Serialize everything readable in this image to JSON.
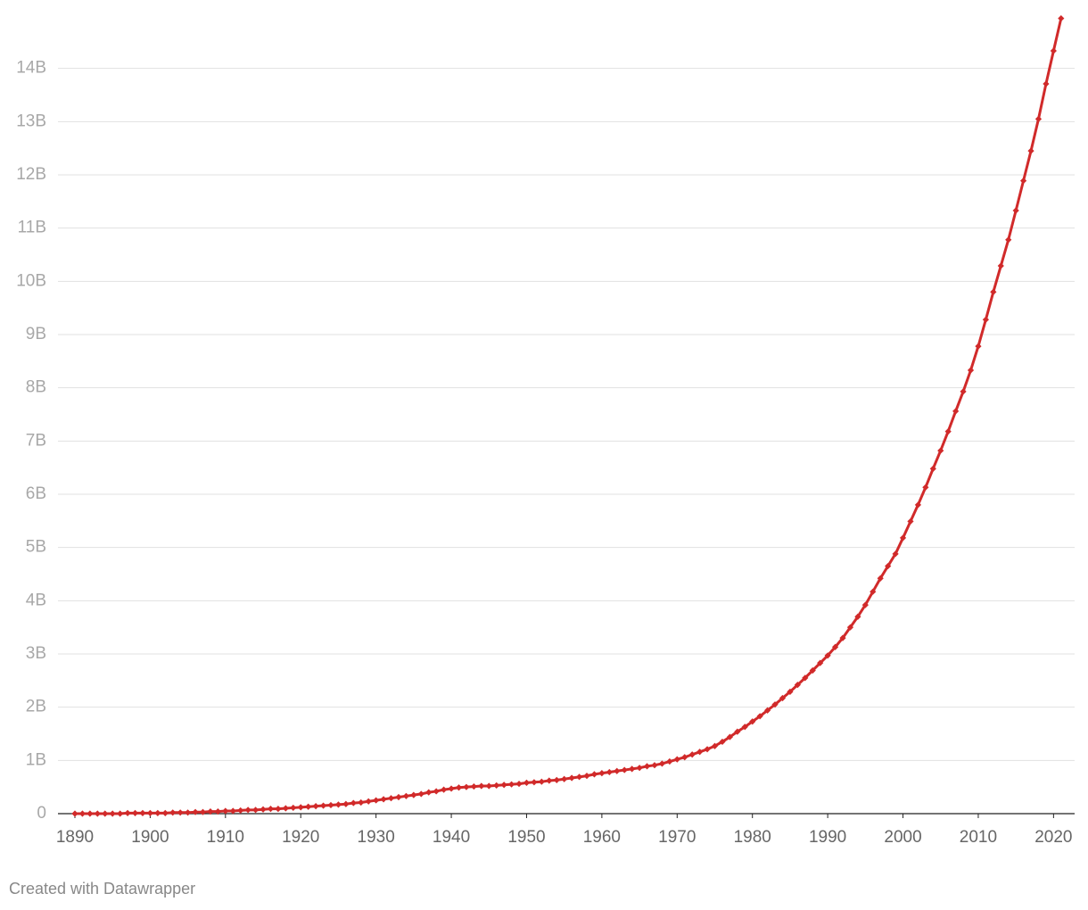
{
  "chart_data": {
    "type": "line",
    "x": [
      1890,
      1891,
      1892,
      1893,
      1894,
      1895,
      1896,
      1897,
      1898,
      1899,
      1900,
      1901,
      1902,
      1903,
      1904,
      1905,
      1906,
      1907,
      1908,
      1909,
      1910,
      1911,
      1912,
      1913,
      1914,
      1915,
      1916,
      1917,
      1918,
      1919,
      1920,
      1921,
      1922,
      1923,
      1924,
      1925,
      1926,
      1927,
      1928,
      1929,
      1930,
      1931,
      1932,
      1933,
      1934,
      1935,
      1936,
      1937,
      1938,
      1939,
      1940,
      1941,
      1942,
      1943,
      1944,
      1945,
      1946,
      1947,
      1948,
      1949,
      1950,
      1951,
      1952,
      1953,
      1954,
      1955,
      1956,
      1957,
      1958,
      1959,
      1960,
      1961,
      1962,
      1963,
      1964,
      1965,
      1966,
      1967,
      1968,
      1969,
      1970,
      1971,
      1972,
      1973,
      1974,
      1975,
      1976,
      1977,
      1978,
      1979,
      1980,
      1981,
      1982,
      1983,
      1984,
      1985,
      1986,
      1987,
      1988,
      1989,
      1990,
      1991,
      1992,
      1993,
      1994,
      1995,
      1996,
      1997,
      1998,
      1999,
      2000,
      2001,
      2002,
      2003,
      2004,
      2005,
      2006,
      2007,
      2008,
      2009,
      2010,
      2011,
      2012,
      2013,
      2014,
      2015,
      2016,
      2017,
      2018,
      2019,
      2020,
      2021
    ],
    "series": [
      {
        "color": "#d12a2a",
        "values": [
          0,
          0,
          0,
          0,
          0,
          0,
          0,
          0.01,
          0.01,
          0.01,
          0.01,
          0.01,
          0.01,
          0.02,
          0.02,
          0.02,
          0.03,
          0.03,
          0.04,
          0.04,
          0.05,
          0.05,
          0.06,
          0.07,
          0.07,
          0.08,
          0.09,
          0.09,
          0.1,
          0.11,
          0.12,
          0.13,
          0.14,
          0.15,
          0.16,
          0.17,
          0.18,
          0.2,
          0.21,
          0.23,
          0.25,
          0.27,
          0.29,
          0.31,
          0.33,
          0.35,
          0.37,
          0.4,
          0.42,
          0.45,
          0.47,
          0.49,
          0.5,
          0.51,
          0.52,
          0.52,
          0.53,
          0.54,
          0.55,
          0.56,
          0.58,
          0.59,
          0.6,
          0.62,
          0.63,
          0.65,
          0.67,
          0.69,
          0.71,
          0.74,
          0.76,
          0.78,
          0.8,
          0.82,
          0.84,
          0.86,
          0.89,
          0.91,
          0.94,
          0.98,
          1.02,
          1.06,
          1.11,
          1.16,
          1.21,
          1.27,
          1.35,
          1.44,
          1.54,
          1.63,
          1.73,
          1.83,
          1.94,
          2.05,
          2.17,
          2.29,
          2.42,
          2.55,
          2.69,
          2.83,
          2.97,
          3.13,
          3.3,
          3.5,
          3.7,
          3.92,
          4.17,
          4.42,
          4.65,
          4.88,
          5.18,
          5.49,
          5.8,
          6.13,
          6.48,
          6.82,
          7.18,
          7.56,
          7.93,
          8.33,
          8.78,
          9.28,
          9.8,
          10.29,
          10.78,
          11.33,
          11.89,
          12.45,
          13.05,
          13.71,
          14.33,
          14.94
        ]
      }
    ],
    "xlim": [
      1887.75,
      2022.8
    ],
    "xticks": [
      1890,
      1900,
      1910,
      1920,
      1930,
      1940,
      1950,
      1960,
      1970,
      1980,
      1990,
      2000,
      2010,
      2020
    ],
    "ylim": [
      0,
      15
    ],
    "yticks": [
      0,
      {
        "value": 1,
        "label": "1B"
      },
      {
        "value": 2,
        "label": "2B"
      },
      {
        "value": 3,
        "label": "3B"
      },
      {
        "value": 4,
        "label": "4B"
      },
      {
        "value": 5,
        "label": "5B"
      },
      {
        "value": 6,
        "label": "6B"
      },
      {
        "value": 7,
        "label": "7B"
      },
      {
        "value": 8,
        "label": "8B"
      },
      {
        "value": 9,
        "label": "9B"
      },
      {
        "value": 10,
        "label": "10B"
      },
      {
        "value": 11,
        "label": "11B"
      },
      {
        "value": 12,
        "label": "12B"
      },
      {
        "value": 13,
        "label": "13B"
      },
      {
        "value": 14,
        "label": "14B"
      }
    ],
    "grid": true,
    "credit": "Created with Datawrapper"
  }
}
